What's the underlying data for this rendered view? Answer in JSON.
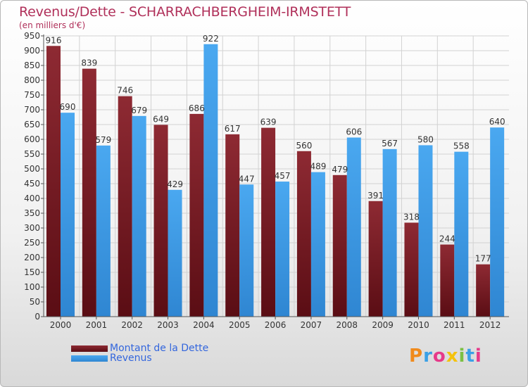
{
  "title": "Revenus/Dette - SCHARRACHBERGHEIM-IRMSTETT",
  "subtitle": "(en milliers d'€)",
  "logo_text": "Proxiti",
  "legend": [
    {
      "label": "Montant de la Dette",
      "color": "#7a1c24"
    },
    {
      "label": "Revenus",
      "color": "#3c9ae6"
    }
  ],
  "chart_data": {
    "type": "bar",
    "categories": [
      "2000",
      "2001",
      "2002",
      "2003",
      "2004",
      "2005",
      "2006",
      "2007",
      "2008",
      "2009",
      "2010",
      "2011",
      "2012"
    ],
    "series": [
      {
        "name": "Montant de la Dette",
        "color": "#7a1c24",
        "values": [
          916,
          839,
          746,
          649,
          686,
          617,
          639,
          560,
          479,
          391,
          318,
          244,
          177
        ]
      },
      {
        "name": "Revenus",
        "color": "#3c9ae6",
        "values": [
          690,
          579,
          679,
          429,
          922,
          447,
          457,
          489,
          606,
          567,
          580,
          558,
          640
        ]
      }
    ],
    "ylim": [
      0,
      950
    ],
    "yticks": [
      0,
      50,
      100,
      150,
      200,
      250,
      300,
      350,
      400,
      450,
      500,
      550,
      600,
      650,
      700,
      750,
      800,
      850,
      900,
      950
    ],
    "grid": true,
    "legend_position": "bottom-left"
  }
}
